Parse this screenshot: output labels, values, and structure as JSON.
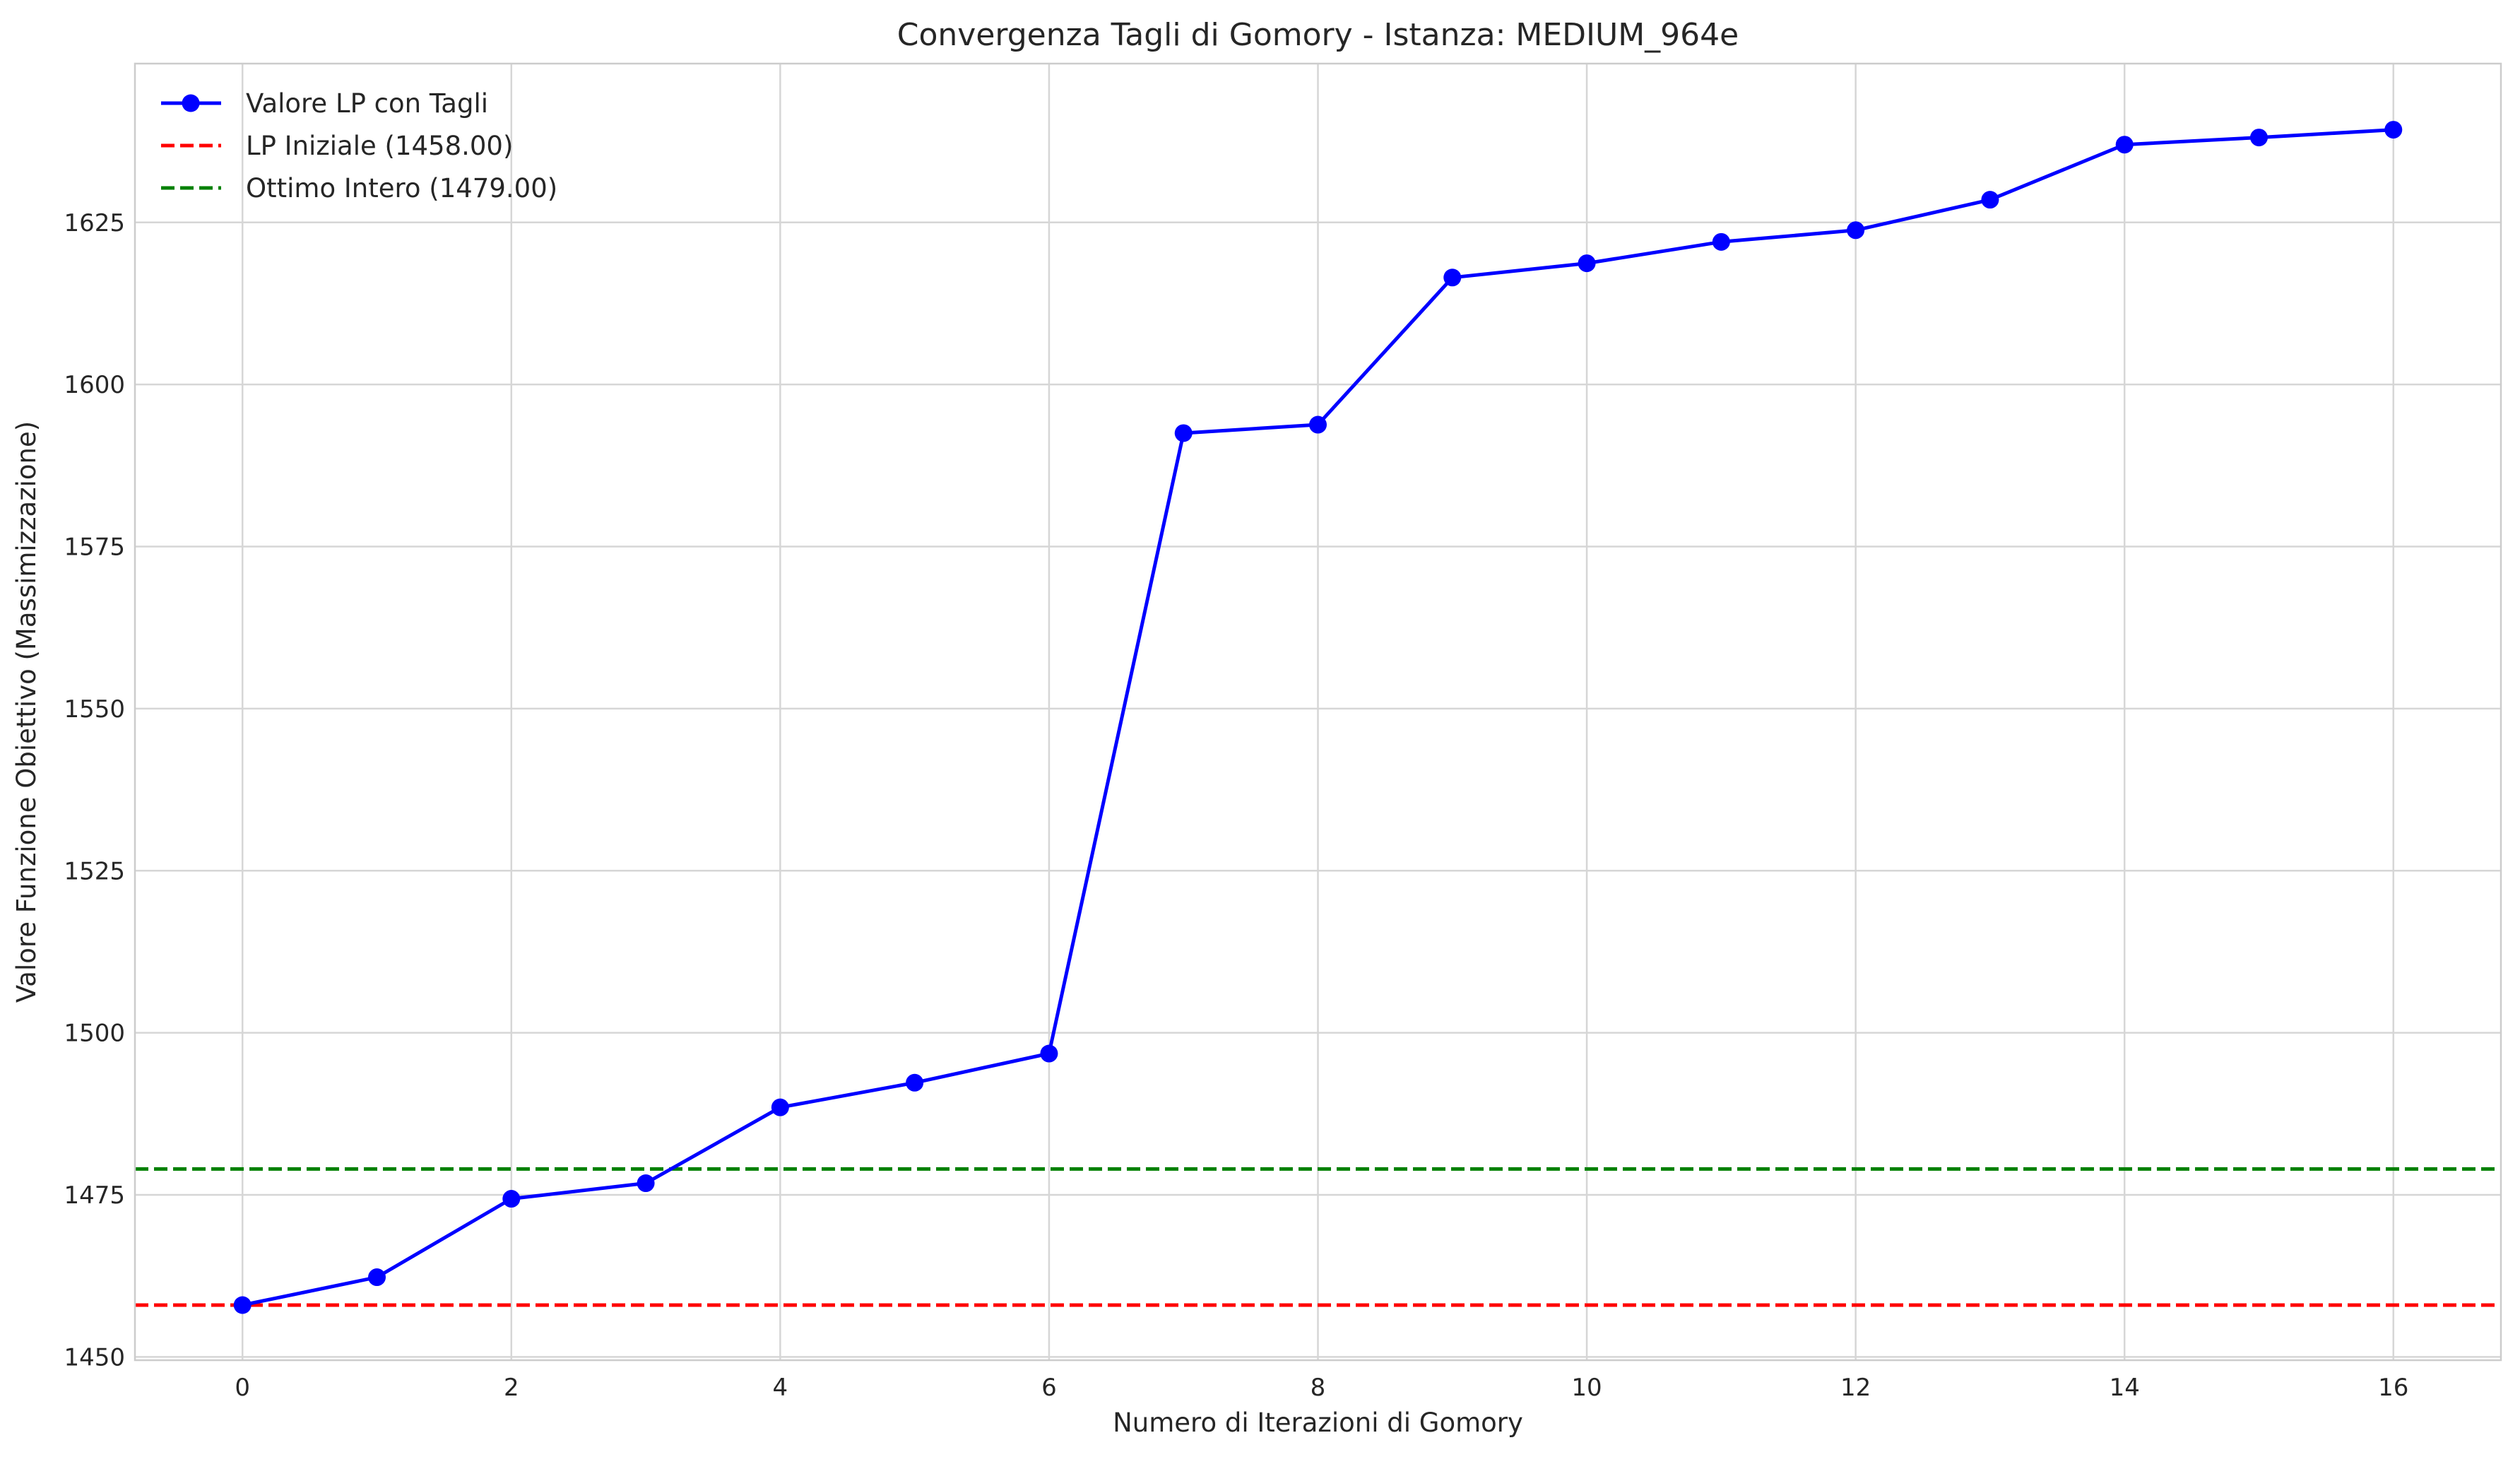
{
  "chart_data": {
    "type": "line",
    "title": "Convergenza Tagli di Gomory - Istanza: MEDIUM_964e",
    "xlabel": "Numero di Iterazioni di Gomory",
    "ylabel": "Valore Funzione Obiettivo (Massimizzazione)",
    "xlim": [
      -0.8,
      16.8
    ],
    "ylim": [
      1449.5,
      1649.5
    ],
    "xticks": [
      0,
      2,
      4,
      6,
      8,
      10,
      12,
      14,
      16
    ],
    "yticks": [
      1450,
      1475,
      1500,
      1525,
      1550,
      1575,
      1600,
      1625
    ],
    "grid": true,
    "legend_position": "upper-left",
    "series": [
      {
        "name": "Valore LP con Tagli",
        "color": "#0000ff",
        "style": "solid-with-circle-markers",
        "x": [
          0,
          1,
          2,
          3,
          4,
          5,
          6,
          7,
          8,
          9,
          10,
          11,
          12,
          13,
          14,
          15,
          16
        ],
        "y": [
          1458.0,
          1462.3,
          1474.4,
          1476.8,
          1488.5,
          1492.3,
          1496.8,
          1592.5,
          1593.8,
          1616.5,
          1618.7,
          1622.0,
          1623.8,
          1628.5,
          1637.0,
          1638.1,
          1639.3
        ]
      },
      {
        "name": "LP Iniziale (1458.00)",
        "color": "#ff0000",
        "style": "dashed-horizontal",
        "value": 1458.0
      },
      {
        "name": "Ottimo Intero (1479.00)",
        "color": "#008000",
        "style": "dashed-horizontal",
        "value": 1479.0
      }
    ]
  }
}
